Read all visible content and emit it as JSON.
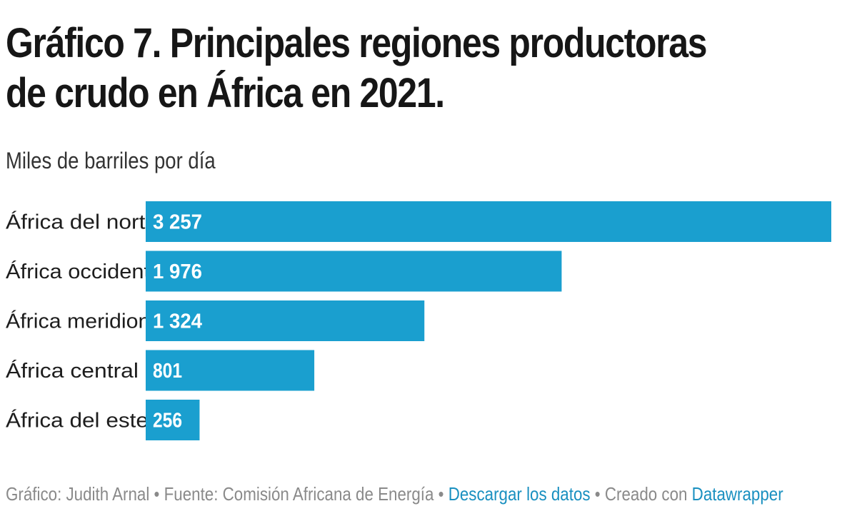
{
  "chart_data": {
    "type": "bar",
    "orientation": "horizontal",
    "title": "Gráfico 7. Principales regiones productoras de crudo en África en 2021.",
    "subtitle": "Miles de barriles por día",
    "categories": [
      "África del norte",
      "África occidental",
      "África meridional",
      "África central",
      "África del este"
    ],
    "values": [
      3257,
      1976,
      1324,
      801,
      256
    ],
    "value_labels": [
      "3 257",
      "1 976",
      "1 324",
      "801",
      "256"
    ],
    "bar_color": "#1a9fcf",
    "xlim": [
      0,
      3257
    ],
    "grid": false,
    "legend": "none"
  },
  "footer": {
    "credit": "Gráfico: Judith Arnal",
    "separator": " • ",
    "source": "Fuente: Comisión Africana de Energía",
    "download_link": "Descargar los datos",
    "created_with": "Creado con",
    "tool_link": "Datawrapper"
  },
  "colors": {
    "link": "#1a90c0",
    "footer_text": "#8a8a8a"
  }
}
